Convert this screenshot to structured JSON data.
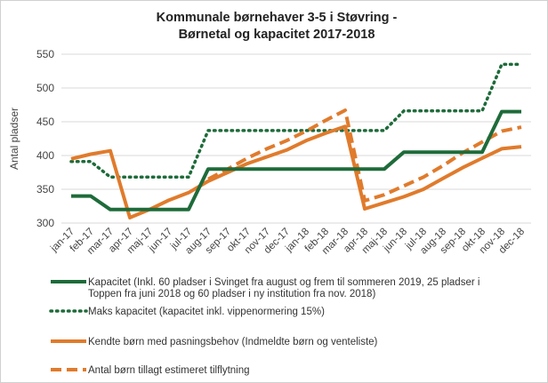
{
  "chart_data": {
    "type": "line",
    "title": "Kommunale børnehaver 3-5 i Støvring -",
    "subtitle": "Børnetal og kapacitet 2017-2018",
    "xlabel": "",
    "ylabel": "Antal pladser",
    "ylim": [
      300,
      550
    ],
    "yticks": [
      300,
      350,
      400,
      450,
      500,
      550
    ],
    "grid": true,
    "legend_position": "bottom",
    "categories": [
      "jan-17",
      "feb-17",
      "mar-17",
      "apr-17",
      "maj-17",
      "jun-17",
      "jul-17",
      "aug-17",
      "sep-17",
      "okt-17",
      "nov-17",
      "dec-17",
      "jan-18",
      "feb-18",
      "mar-18",
      "apr-18",
      "maj-18",
      "jun-18",
      "jul-18",
      "aug-18",
      "sep-18",
      "okt-18",
      "nov-18",
      "dec-18"
    ],
    "series": [
      {
        "name": "Kapacitet (Inkl. 60 pladser i Svinget fra august og frem til sommeren 2019, 25 pladser i Toppen fra juni 2018 og 60 pladser i ny institution fra nov. 2018)",
        "color": "#1e6b3a",
        "style": "solid",
        "values": [
          340,
          340,
          320,
          320,
          320,
          320,
          320,
          380,
          380,
          380,
          380,
          380,
          380,
          380,
          380,
          380,
          380,
          405,
          405,
          405,
          405,
          405,
          465,
          465
        ]
      },
      {
        "name": "Maks kapacitet (kapacitet inkl. vippenormering 15%)",
        "color": "#1e6b3a",
        "style": "dotted",
        "values": [
          391,
          391,
          368,
          368,
          368,
          368,
          368,
          437,
          437,
          437,
          437,
          437,
          437,
          437,
          437,
          437,
          437,
          466,
          466,
          466,
          466,
          466,
          535,
          535
        ]
      },
      {
        "name": "Kendte børn med pasningsbehov (Indmeldte børn og venteliste)",
        "color": "#e07b2c",
        "style": "solid",
        "values": [
          395,
          402,
          407,
          308,
          320,
          334,
          345,
          362,
          375,
          388,
          398,
          408,
          422,
          433,
          443,
          321,
          330,
          339,
          350,
          366,
          382,
          396,
          410,
          413
        ]
      },
      {
        "name": "Antal børn tillagt estimeret tilflytning",
        "color": "#e07b2c",
        "style": "dashed",
        "values": [
          null,
          null,
          null,
          null,
          null,
          null,
          null,
          365,
          380,
          396,
          410,
          422,
          436,
          452,
          467,
          333,
          342,
          355,
          368,
          385,
          404,
          420,
          436,
          442
        ]
      }
    ]
  }
}
